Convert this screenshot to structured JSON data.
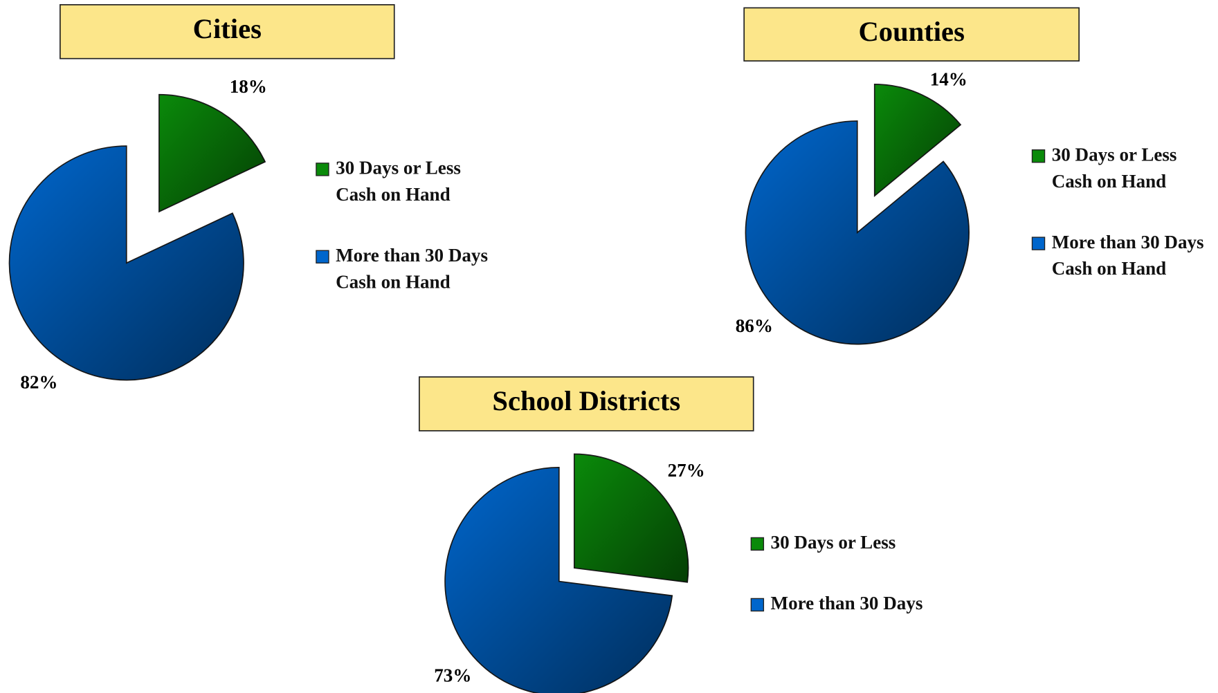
{
  "chart_data": [
    {
      "type": "pie",
      "title": "Cities",
      "categories": [
        "30 Days or Less Cash on Hand",
        "More than 30 Days Cash on Hand"
      ],
      "values": [
        18,
        82
      ],
      "value_labels": [
        "18%",
        "82%"
      ],
      "colors": [
        "#0a8a0a",
        "#0066cc"
      ]
    },
    {
      "type": "pie",
      "title": "Counties",
      "categories": [
        "30 Days or Less Cash on Hand",
        "More than 30 Days Cash on Hand"
      ],
      "values": [
        14,
        86
      ],
      "value_labels": [
        "14%",
        "86%"
      ],
      "colors": [
        "#0a8a0a",
        "#0066cc"
      ]
    },
    {
      "type": "pie",
      "title": "School Districts",
      "categories": [
        "30 Days or Less",
        "More than 30 Days"
      ],
      "values": [
        27,
        73
      ],
      "value_labels": [
        "27%",
        "73%"
      ],
      "colors": [
        "#0a8a0a",
        "#0066cc"
      ]
    }
  ]
}
